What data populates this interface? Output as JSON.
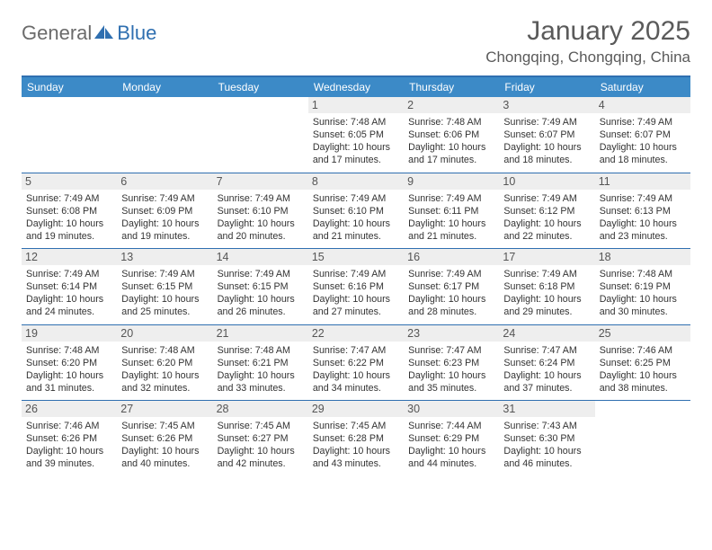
{
  "brand": {
    "part1": "General",
    "part2": "Blue"
  },
  "title": "January 2025",
  "location": "Chongqing, Chongqing, China",
  "colors": {
    "header_bg": "#3c8ac7",
    "rule": "#2f6fb0",
    "daynum_bg": "#eeeeee",
    "text": "#333333",
    "muted": "#5a5a5a"
  },
  "dow": [
    "Sunday",
    "Monday",
    "Tuesday",
    "Wednesday",
    "Thursday",
    "Friday",
    "Saturday"
  ],
  "weeks": [
    [
      {
        "n": "",
        "sr": "",
        "ss": "",
        "dl": ""
      },
      {
        "n": "",
        "sr": "",
        "ss": "",
        "dl": ""
      },
      {
        "n": "",
        "sr": "",
        "ss": "",
        "dl": ""
      },
      {
        "n": "1",
        "sr": "Sunrise: 7:48 AM",
        "ss": "Sunset: 6:05 PM",
        "dl": "Daylight: 10 hours and 17 minutes."
      },
      {
        "n": "2",
        "sr": "Sunrise: 7:48 AM",
        "ss": "Sunset: 6:06 PM",
        "dl": "Daylight: 10 hours and 17 minutes."
      },
      {
        "n": "3",
        "sr": "Sunrise: 7:49 AM",
        "ss": "Sunset: 6:07 PM",
        "dl": "Daylight: 10 hours and 18 minutes."
      },
      {
        "n": "4",
        "sr": "Sunrise: 7:49 AM",
        "ss": "Sunset: 6:07 PM",
        "dl": "Daylight: 10 hours and 18 minutes."
      }
    ],
    [
      {
        "n": "5",
        "sr": "Sunrise: 7:49 AM",
        "ss": "Sunset: 6:08 PM",
        "dl": "Daylight: 10 hours and 19 minutes."
      },
      {
        "n": "6",
        "sr": "Sunrise: 7:49 AM",
        "ss": "Sunset: 6:09 PM",
        "dl": "Daylight: 10 hours and 19 minutes."
      },
      {
        "n": "7",
        "sr": "Sunrise: 7:49 AM",
        "ss": "Sunset: 6:10 PM",
        "dl": "Daylight: 10 hours and 20 minutes."
      },
      {
        "n": "8",
        "sr": "Sunrise: 7:49 AM",
        "ss": "Sunset: 6:10 PM",
        "dl": "Daylight: 10 hours and 21 minutes."
      },
      {
        "n": "9",
        "sr": "Sunrise: 7:49 AM",
        "ss": "Sunset: 6:11 PM",
        "dl": "Daylight: 10 hours and 21 minutes."
      },
      {
        "n": "10",
        "sr": "Sunrise: 7:49 AM",
        "ss": "Sunset: 6:12 PM",
        "dl": "Daylight: 10 hours and 22 minutes."
      },
      {
        "n": "11",
        "sr": "Sunrise: 7:49 AM",
        "ss": "Sunset: 6:13 PM",
        "dl": "Daylight: 10 hours and 23 minutes."
      }
    ],
    [
      {
        "n": "12",
        "sr": "Sunrise: 7:49 AM",
        "ss": "Sunset: 6:14 PM",
        "dl": "Daylight: 10 hours and 24 minutes."
      },
      {
        "n": "13",
        "sr": "Sunrise: 7:49 AM",
        "ss": "Sunset: 6:15 PM",
        "dl": "Daylight: 10 hours and 25 minutes."
      },
      {
        "n": "14",
        "sr": "Sunrise: 7:49 AM",
        "ss": "Sunset: 6:15 PM",
        "dl": "Daylight: 10 hours and 26 minutes."
      },
      {
        "n": "15",
        "sr": "Sunrise: 7:49 AM",
        "ss": "Sunset: 6:16 PM",
        "dl": "Daylight: 10 hours and 27 minutes."
      },
      {
        "n": "16",
        "sr": "Sunrise: 7:49 AM",
        "ss": "Sunset: 6:17 PM",
        "dl": "Daylight: 10 hours and 28 minutes."
      },
      {
        "n": "17",
        "sr": "Sunrise: 7:49 AM",
        "ss": "Sunset: 6:18 PM",
        "dl": "Daylight: 10 hours and 29 minutes."
      },
      {
        "n": "18",
        "sr": "Sunrise: 7:48 AM",
        "ss": "Sunset: 6:19 PM",
        "dl": "Daylight: 10 hours and 30 minutes."
      }
    ],
    [
      {
        "n": "19",
        "sr": "Sunrise: 7:48 AM",
        "ss": "Sunset: 6:20 PM",
        "dl": "Daylight: 10 hours and 31 minutes."
      },
      {
        "n": "20",
        "sr": "Sunrise: 7:48 AM",
        "ss": "Sunset: 6:20 PM",
        "dl": "Daylight: 10 hours and 32 minutes."
      },
      {
        "n": "21",
        "sr": "Sunrise: 7:48 AM",
        "ss": "Sunset: 6:21 PM",
        "dl": "Daylight: 10 hours and 33 minutes."
      },
      {
        "n": "22",
        "sr": "Sunrise: 7:47 AM",
        "ss": "Sunset: 6:22 PM",
        "dl": "Daylight: 10 hours and 34 minutes."
      },
      {
        "n": "23",
        "sr": "Sunrise: 7:47 AM",
        "ss": "Sunset: 6:23 PM",
        "dl": "Daylight: 10 hours and 35 minutes."
      },
      {
        "n": "24",
        "sr": "Sunrise: 7:47 AM",
        "ss": "Sunset: 6:24 PM",
        "dl": "Daylight: 10 hours and 37 minutes."
      },
      {
        "n": "25",
        "sr": "Sunrise: 7:46 AM",
        "ss": "Sunset: 6:25 PM",
        "dl": "Daylight: 10 hours and 38 minutes."
      }
    ],
    [
      {
        "n": "26",
        "sr": "Sunrise: 7:46 AM",
        "ss": "Sunset: 6:26 PM",
        "dl": "Daylight: 10 hours and 39 minutes."
      },
      {
        "n": "27",
        "sr": "Sunrise: 7:45 AM",
        "ss": "Sunset: 6:26 PM",
        "dl": "Daylight: 10 hours and 40 minutes."
      },
      {
        "n": "28",
        "sr": "Sunrise: 7:45 AM",
        "ss": "Sunset: 6:27 PM",
        "dl": "Daylight: 10 hours and 42 minutes."
      },
      {
        "n": "29",
        "sr": "Sunrise: 7:45 AM",
        "ss": "Sunset: 6:28 PM",
        "dl": "Daylight: 10 hours and 43 minutes."
      },
      {
        "n": "30",
        "sr": "Sunrise: 7:44 AM",
        "ss": "Sunset: 6:29 PM",
        "dl": "Daylight: 10 hours and 44 minutes."
      },
      {
        "n": "31",
        "sr": "Sunrise: 7:43 AM",
        "ss": "Sunset: 6:30 PM",
        "dl": "Daylight: 10 hours and 46 minutes."
      },
      {
        "n": "",
        "sr": "",
        "ss": "",
        "dl": ""
      }
    ]
  ]
}
